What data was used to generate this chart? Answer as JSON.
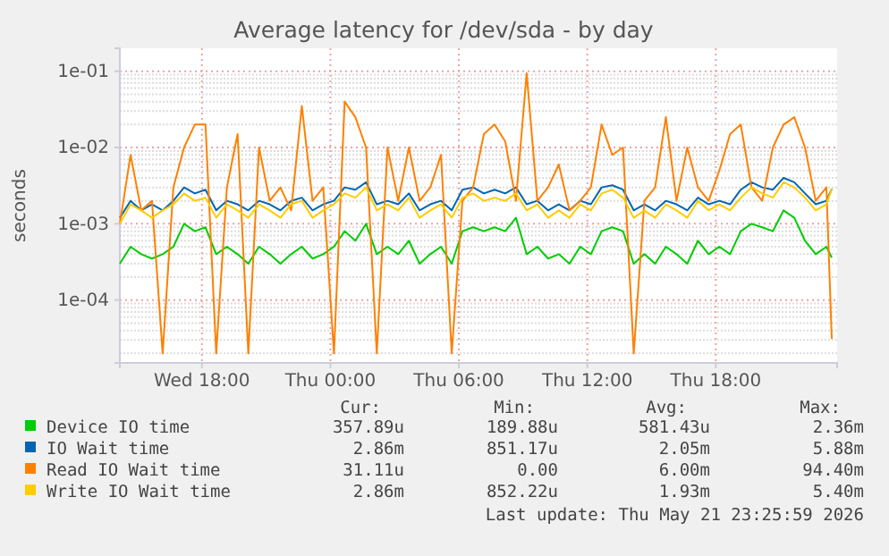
{
  "chart_data": {
    "type": "line",
    "title": "Average latency for /dev/sda - by day",
    "ylabel": "seconds",
    "log": true,
    "grid": true,
    "legend": "bottom",
    "ylim": [
      1.5e-05,
      0.2
    ],
    "yticks": [
      {
        "value": 0.0001,
        "label": "1e-04"
      },
      {
        "value": 0.001,
        "label": "1e-03"
      },
      {
        "value": 0.01,
        "label": "1e-02"
      },
      {
        "value": 0.1,
        "label": "1e-01"
      }
    ],
    "xlim": [
      "2026-05-20T14:10",
      "2026-05-21T23:40"
    ],
    "xticks": [
      {
        "value": "2026-05-20T18:00",
        "label": "Wed 18:00"
      },
      {
        "value": "2026-05-21T00:00",
        "label": "Thu 00:00"
      },
      {
        "value": "2026-05-21T06:00",
        "label": "Thu 06:00"
      },
      {
        "value": "2026-05-21T12:00",
        "label": "Thu 12:00"
      },
      {
        "value": "2026-05-21T18:00",
        "label": "Thu 18:00"
      }
    ],
    "x": [
      "2026-05-20T14:10",
      "2026-05-20T14:40",
      "2026-05-20T15:10",
      "2026-05-20T15:40",
      "2026-05-20T16:10",
      "2026-05-20T16:40",
      "2026-05-20T17:10",
      "2026-05-20T17:40",
      "2026-05-20T18:10",
      "2026-05-20T18:40",
      "2026-05-20T19:10",
      "2026-05-20T19:40",
      "2026-05-20T20:10",
      "2026-05-20T20:40",
      "2026-05-20T21:10",
      "2026-05-20T21:40",
      "2026-05-20T22:10",
      "2026-05-20T22:40",
      "2026-05-20T23:10",
      "2026-05-20T23:40",
      "2026-05-21T00:10",
      "2026-05-21T00:40",
      "2026-05-21T01:10",
      "2026-05-21T01:40",
      "2026-05-21T02:10",
      "2026-05-21T02:40",
      "2026-05-21T03:10",
      "2026-05-21T03:40",
      "2026-05-21T04:10",
      "2026-05-21T04:40",
      "2026-05-21T05:10",
      "2026-05-21T05:40",
      "2026-05-21T06:10",
      "2026-05-21T06:40",
      "2026-05-21T07:10",
      "2026-05-21T07:40",
      "2026-05-21T08:10",
      "2026-05-21T08:40",
      "2026-05-21T09:10",
      "2026-05-21T09:40",
      "2026-05-21T10:10",
      "2026-05-21T10:40",
      "2026-05-21T11:10",
      "2026-05-21T11:40",
      "2026-05-21T12:10",
      "2026-05-21T12:40",
      "2026-05-21T13:10",
      "2026-05-21T13:40",
      "2026-05-21T14:10",
      "2026-05-21T14:40",
      "2026-05-21T15:10",
      "2026-05-21T15:40",
      "2026-05-21T16:10",
      "2026-05-21T16:40",
      "2026-05-21T17:10",
      "2026-05-21T17:40",
      "2026-05-21T18:10",
      "2026-05-21T18:40",
      "2026-05-21T19:10",
      "2026-05-21T19:40",
      "2026-05-21T20:10",
      "2026-05-21T20:40",
      "2026-05-21T21:10",
      "2026-05-21T21:40",
      "2026-05-21T22:10",
      "2026-05-21T22:40",
      "2026-05-21T23:10",
      "2026-05-21T23:25"
    ],
    "series": [
      {
        "name": "Device IO time",
        "color": "#00cc00",
        "values": [
          0.0003,
          0.0005,
          0.0004,
          0.00035,
          0.0004,
          0.0005,
          0.001,
          0.0008,
          0.0009,
          0.0004,
          0.0005,
          0.0004,
          0.0003,
          0.0005,
          0.0004,
          0.0003,
          0.0004,
          0.0005,
          0.00035,
          0.0004,
          0.0005,
          0.0008,
          0.0006,
          0.001,
          0.0004,
          0.0005,
          0.0004,
          0.0006,
          0.0003,
          0.0004,
          0.0005,
          0.0003,
          0.0008,
          0.0009,
          0.0008,
          0.0009,
          0.0008,
          0.0012,
          0.0004,
          0.0005,
          0.00035,
          0.0004,
          0.0003,
          0.0005,
          0.0004,
          0.0008,
          0.0009,
          0.0008,
          0.0003,
          0.0004,
          0.0003,
          0.0005,
          0.0004,
          0.0003,
          0.0006,
          0.0004,
          0.0005,
          0.0004,
          0.0008,
          0.001,
          0.0009,
          0.0008,
          0.0015,
          0.0012,
          0.0006,
          0.0004,
          0.0005,
          0.00036
        ]
      },
      {
        "name": "IO Wait time",
        "color": "#0066b3",
        "values": [
          0.0012,
          0.002,
          0.0015,
          0.0018,
          0.0015,
          0.002,
          0.003,
          0.0025,
          0.0028,
          0.0015,
          0.002,
          0.0018,
          0.0015,
          0.002,
          0.0018,
          0.0015,
          0.002,
          0.0022,
          0.0015,
          0.0018,
          0.002,
          0.003,
          0.0028,
          0.0035,
          0.0018,
          0.002,
          0.0018,
          0.0025,
          0.0015,
          0.0018,
          0.002,
          0.0015,
          0.0028,
          0.003,
          0.0025,
          0.0028,
          0.0025,
          0.003,
          0.0018,
          0.002,
          0.0015,
          0.0018,
          0.0015,
          0.002,
          0.0018,
          0.003,
          0.0032,
          0.0028,
          0.0015,
          0.0018,
          0.0015,
          0.002,
          0.0018,
          0.0015,
          0.0022,
          0.0018,
          0.002,
          0.0018,
          0.0028,
          0.0035,
          0.003,
          0.0028,
          0.004,
          0.0035,
          0.0025,
          0.0018,
          0.002,
          0.00286
        ]
      },
      {
        "name": "Read IO Wait time",
        "color": "#ff8000",
        "values": [
          0.001,
          0.008,
          0.0015,
          0.002,
          2e-05,
          0.003,
          0.01,
          0.02,
          0.02,
          2e-05,
          0.003,
          0.015,
          2e-05,
          0.01,
          0.002,
          0.003,
          0.0015,
          0.035,
          0.002,
          0.003,
          2e-05,
          0.04,
          0.025,
          0.01,
          2e-05,
          0.01,
          0.002,
          0.01,
          0.002,
          0.003,
          0.008,
          2e-05,
          0.002,
          0.003,
          0.015,
          0.02,
          0.012,
          0.002,
          0.094,
          0.002,
          0.003,
          0.006,
          0.0015,
          0.002,
          0.003,
          0.02,
          0.008,
          0.01,
          2e-05,
          0.002,
          0.003,
          0.025,
          0.002,
          0.01,
          0.003,
          0.002,
          0.005,
          0.015,
          0.02,
          0.003,
          0.002,
          0.01,
          0.02,
          0.025,
          0.01,
          0.002,
          0.003,
          3.1e-05
        ]
      },
      {
        "name": "Write IO Wait time",
        "color": "#ffcc00",
        "values": [
          0.001,
          0.0018,
          0.0015,
          0.0012,
          0.0015,
          0.0018,
          0.0025,
          0.002,
          0.0022,
          0.0012,
          0.0018,
          0.0015,
          0.0012,
          0.0018,
          0.0015,
          0.0012,
          0.0018,
          0.002,
          0.0012,
          0.0015,
          0.0018,
          0.0025,
          0.0022,
          0.003,
          0.0015,
          0.0018,
          0.0015,
          0.0022,
          0.0012,
          0.0015,
          0.0018,
          0.0012,
          0.0022,
          0.0025,
          0.002,
          0.0022,
          0.002,
          0.0025,
          0.0015,
          0.0018,
          0.0012,
          0.0015,
          0.0012,
          0.0018,
          0.0015,
          0.0025,
          0.0028,
          0.0022,
          0.0012,
          0.0015,
          0.0012,
          0.0018,
          0.0015,
          0.0012,
          0.002,
          0.0015,
          0.0018,
          0.0015,
          0.0022,
          0.003,
          0.0025,
          0.0022,
          0.0035,
          0.003,
          0.0022,
          0.0015,
          0.0018,
          0.00286
        ]
      }
    ],
    "annotations": [
      "Cur:",
      "Min:",
      "Avg:",
      "Max:",
      "357.89u",
      "189.88u",
      "581.43u",
      "2.36m",
      "2.86m",
      "851.17u",
      "2.05m",
      "5.88m",
      "31.11u",
      "0.00",
      "6.00m",
      "94.40m",
      "2.86m",
      "852.22u",
      "1.93m",
      "5.40m",
      "Last update: Thu May 21 23:25:59 2026"
    ]
  }
}
